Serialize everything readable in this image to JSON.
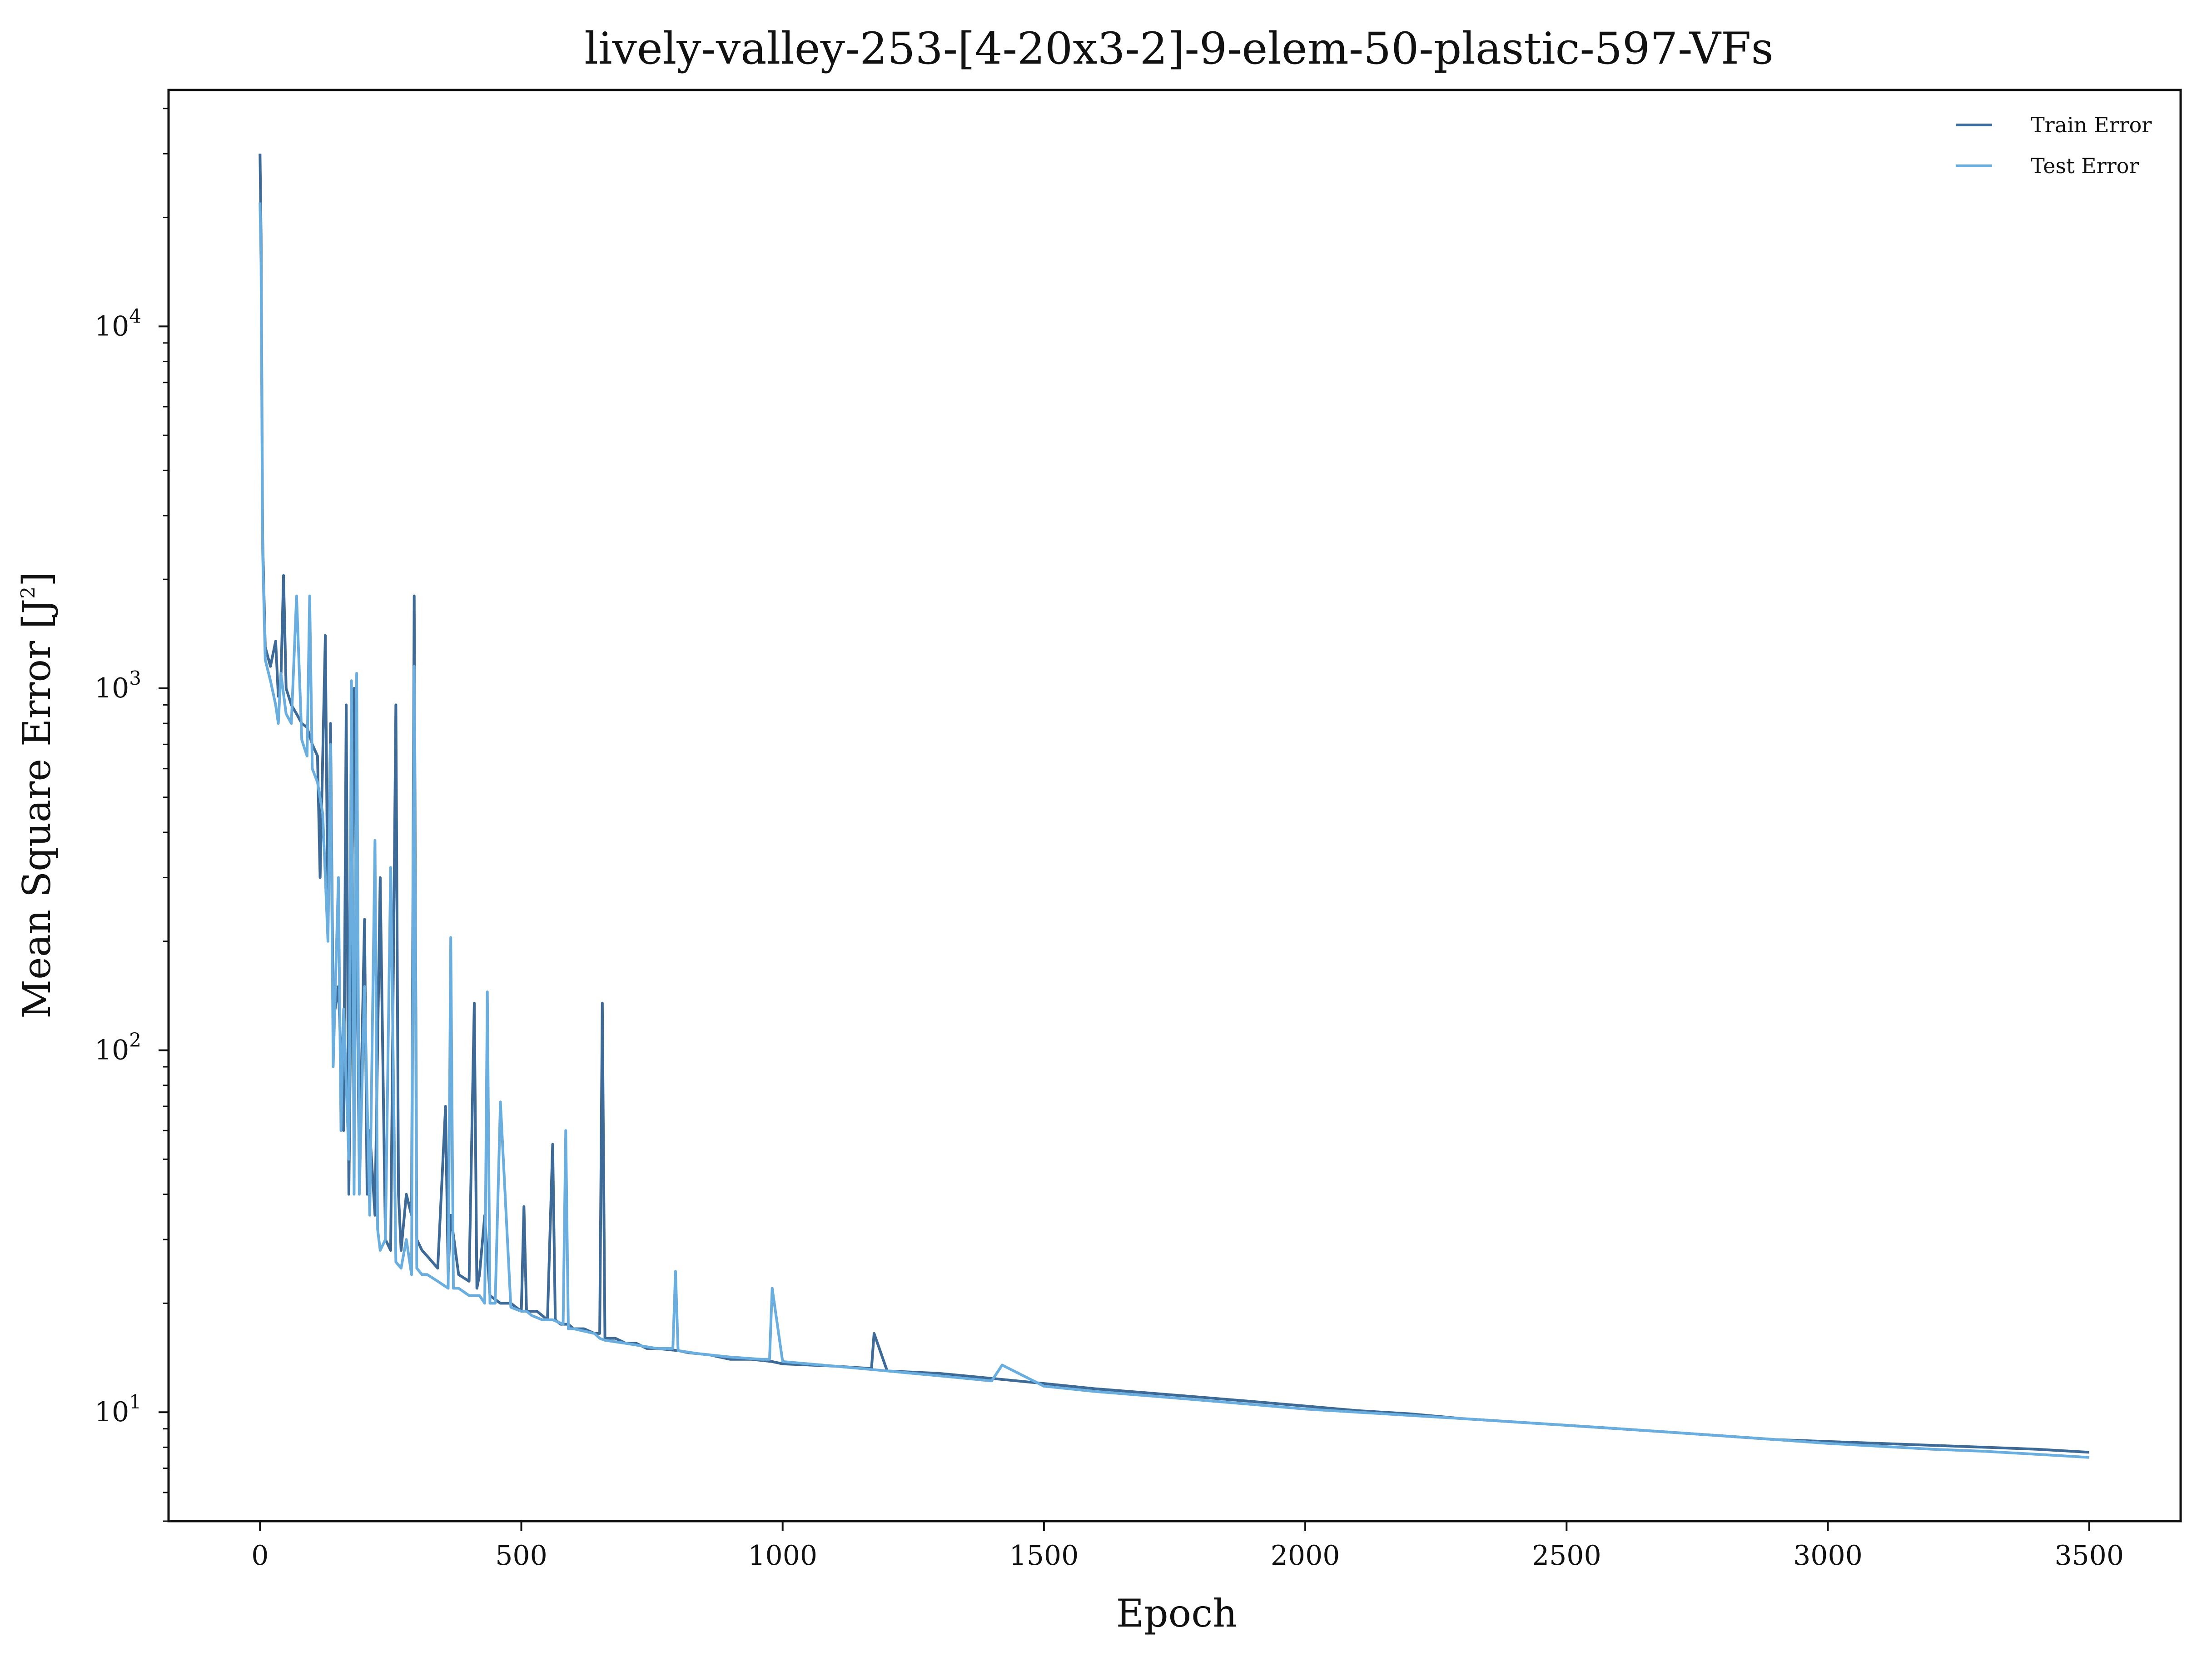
{
  "chart_data": {
    "type": "line",
    "title": "lively-valley-253-[4-20x3-2]-9-elem-50-plastic-597-VFs",
    "xlabel": "Epoch",
    "ylabel": "Mean Square Error [J²]",
    "ylabel_parts": {
      "main": "Mean Square Error [J",
      "sup": "2",
      "end": "]"
    },
    "xlim": [
      -175,
      3675
    ],
    "ylim": [
      5,
      45000
    ],
    "yscale": "log",
    "grid": false,
    "legend_position": "top-right",
    "xticks": [
      0,
      500,
      1000,
      1500,
      2000,
      2500,
      3000,
      3500
    ],
    "xtick_labels": [
      "0",
      "500",
      "1000",
      "1500",
      "2000",
      "2500",
      "3000",
      "3500"
    ],
    "yticks": [
      10,
      100,
      1000,
      10000
    ],
    "ytick_labels": [
      {
        "base": "10",
        "exp": "1"
      },
      {
        "base": "10",
        "exp": "2"
      },
      {
        "base": "10",
        "exp": "3"
      },
      {
        "base": "10",
        "exp": "4"
      }
    ],
    "series": [
      {
        "name": "Train Error",
        "color": "#3d6a96",
        "x": [
          0,
          2,
          5,
          10,
          20,
          30,
          35,
          40,
          45,
          50,
          60,
          70,
          80,
          90,
          100,
          110,
          115,
          120,
          125,
          130,
          135,
          140,
          150,
          160,
          165,
          170,
          180,
          190,
          200,
          205,
          210,
          220,
          230,
          240,
          250,
          260,
          265,
          270,
          280,
          290,
          295,
          300,
          310,
          320,
          340,
          355,
          360,
          365,
          380,
          400,
          410,
          415,
          420,
          430,
          440,
          460,
          480,
          500,
          505,
          510,
          530,
          550,
          560,
          565,
          575,
          590,
          600,
          620,
          640,
          650,
          655,
          660,
          680,
          700,
          720,
          740,
          760,
          800,
          820,
          860,
          880,
          900,
          940,
          980,
          1000,
          1100,
          1170,
          1175,
          1200,
          1300,
          1400,
          1500,
          1600,
          1700,
          1800,
          1900,
          2000,
          2100,
          2200,
          2300,
          2400,
          2500,
          2600,
          2700,
          2800,
          2900,
          3000,
          3100,
          3200,
          3300,
          3400,
          3500
        ],
        "y": [
          30000,
          18000,
          2600,
          1300,
          1150,
          1350,
          950,
          1050,
          2050,
          1000,
          900,
          850,
          800,
          780,
          700,
          650,
          300,
          650,
          1400,
          220,
          800,
          120,
          150,
          60,
          900,
          40,
          1000,
          45,
          230,
          40,
          60,
          35,
          300,
          30,
          28,
          900,
          40,
          28,
          40,
          35,
          1800,
          30,
          28,
          27,
          25,
          70,
          24,
          35,
          24,
          23,
          135,
          22,
          24,
          35,
          21,
          20,
          20,
          19,
          37,
          19,
          19,
          18,
          55,
          18,
          17.5,
          17.5,
          17,
          17,
          16.5,
          16.5,
          135,
          16,
          16,
          15.5,
          15.5,
          15,
          15,
          14.8,
          14.6,
          14.4,
          14.2,
          14.0,
          14.0,
          13.8,
          13.6,
          13.4,
          13.2,
          16.5,
          13.0,
          12.8,
          12.4,
          12.0,
          11.6,
          11.3,
          11.0,
          10.7,
          10.4,
          10.1,
          9.9,
          9.6,
          9.4,
          9.2,
          9.0,
          8.8,
          8.6,
          8.4,
          8.3,
          8.2,
          8.1,
          8.0,
          7.9,
          7.75
        ]
      },
      {
        "name": "Test Error",
        "color": "#6aaee0",
        "x": [
          0,
          2,
          5,
          10,
          20,
          30,
          35,
          40,
          50,
          60,
          70,
          80,
          90,
          95,
          100,
          110,
          120,
          130,
          135,
          140,
          150,
          155,
          160,
          170,
          175,
          180,
          185,
          190,
          200,
          210,
          220,
          225,
          230,
          240,
          250,
          260,
          270,
          280,
          290,
          295,
          300,
          310,
          320,
          340,
          360,
          365,
          370,
          380,
          400,
          420,
          430,
          435,
          440,
          450,
          460,
          480,
          500,
          510,
          520,
          540,
          560,
          580,
          585,
          590,
          600,
          640,
          650,
          660,
          700,
          760,
          790,
          795,
          800,
          840,
          900,
          960,
          975,
          980,
          1000,
          1100,
          1200,
          1300,
          1400,
          1420,
          1500,
          1600,
          1700,
          1800,
          1900,
          2000,
          2100,
          2200,
          2300,
          2400,
          2500,
          2600,
          2700,
          2800,
          2900,
          3000,
          3100,
          3200,
          3300,
          3400,
          3500
        ],
        "y": [
          22000,
          15000,
          2400,
          1200,
          1050,
          900,
          800,
          1100,
          850,
          800,
          1800,
          720,
          650,
          1800,
          600,
          550,
          450,
          200,
          700,
          90,
          300,
          60,
          130,
          50,
          1050,
          40,
          1100,
          40,
          150,
          35,
          380,
          32,
          28,
          30,
          320,
          26,
          25,
          30,
          24,
          1150,
          25,
          24,
          24,
          23,
          22,
          205,
          22,
          22,
          21,
          21,
          20,
          145,
          20,
          20,
          72,
          19.5,
          19,
          19,
          18.5,
          18,
          18,
          17.5,
          60,
          17,
          17,
          16.5,
          16,
          15.8,
          15.5,
          15,
          15,
          24.5,
          14.8,
          14.5,
          14.2,
          14.0,
          14.0,
          22,
          13.8,
          13.4,
          13.0,
          12.6,
          12.2,
          13.5,
          11.8,
          11.4,
          11.1,
          10.8,
          10.5,
          10.2,
          10.0,
          9.8,
          9.6,
          9.4,
          9.2,
          9.0,
          8.8,
          8.6,
          8.4,
          8.2,
          8.05,
          7.9,
          7.8,
          7.65,
          7.5
        ]
      }
    ]
  }
}
